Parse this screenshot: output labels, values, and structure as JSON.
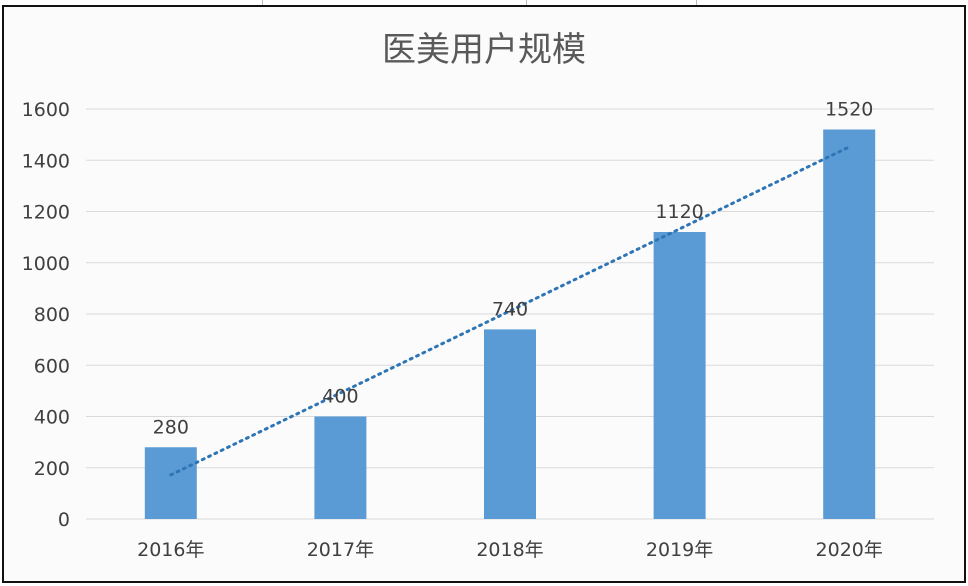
{
  "chart_data": {
    "type": "bar",
    "title": "医美用户规模",
    "categories": [
      "2016年",
      "2017年",
      "2018年",
      "2019年",
      "2020年"
    ],
    "values": [
      280,
      400,
      740,
      1120,
      1520
    ],
    "data_labels": [
      "280",
      "400",
      "740",
      "1120",
      "1520"
    ],
    "ylim": [
      0,
      1600
    ],
    "yticks": [
      "0",
      "200",
      "400",
      "600",
      "800",
      "1000",
      "1200",
      "1400",
      "1600"
    ],
    "grid": true,
    "trendline": {
      "type": "linear",
      "style": "dotted"
    },
    "colors": {
      "bar": "#5b9bd5",
      "trendline": "#2e75b6",
      "grid": "#d9d9d9",
      "text": "#404040"
    }
  }
}
